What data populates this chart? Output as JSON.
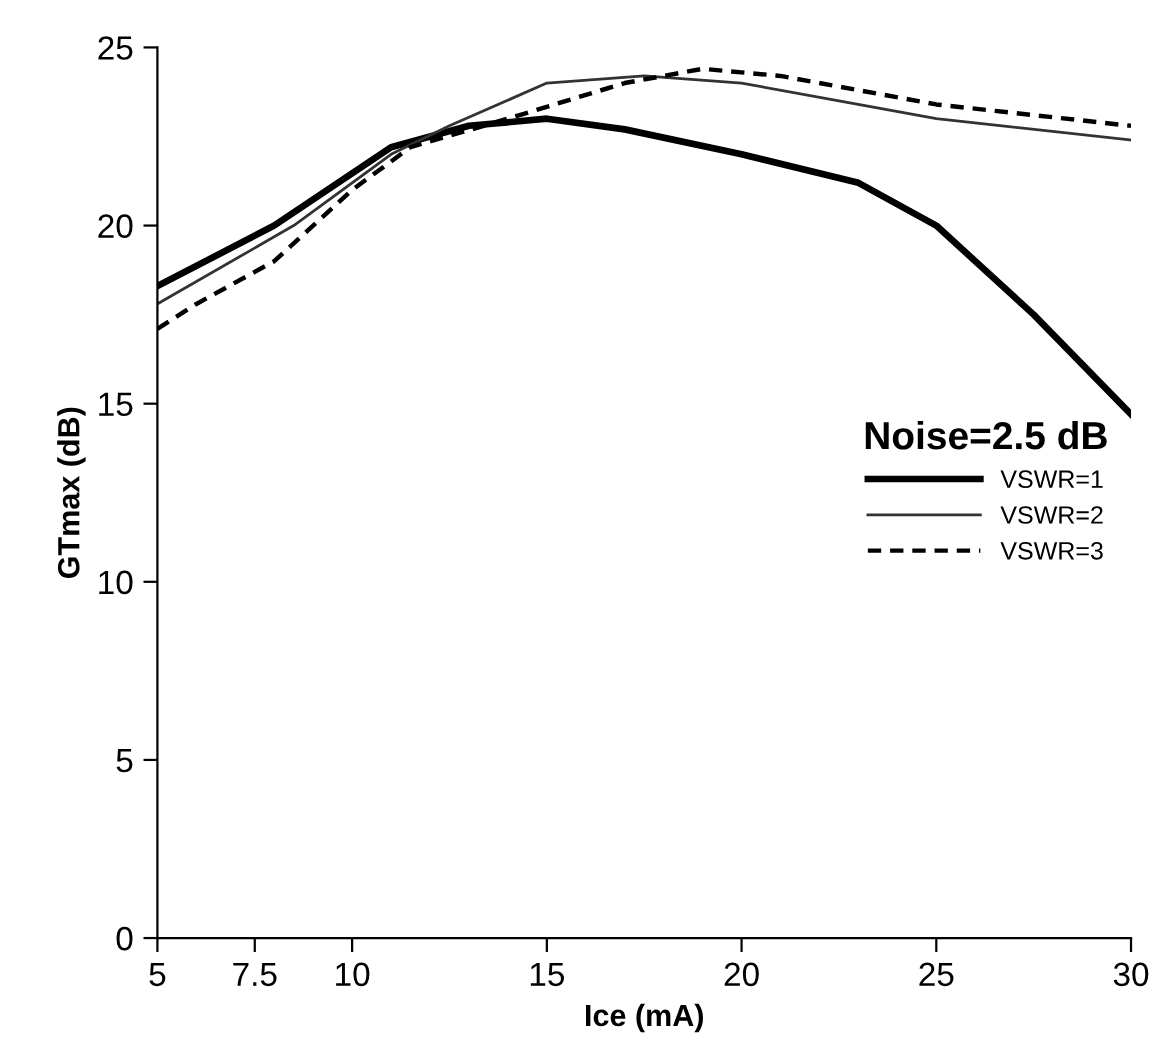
{
  "chart_data": {
    "type": "line",
    "xlabel": "Ice (mA)",
    "ylabel": "GTmax (dB)",
    "legend_title": "Noise=2.5 dB",
    "legend": "center right",
    "grid": false,
    "marker": "none",
    "xlim": [
      5,
      30
    ],
    "xticks": [
      5,
      7.5,
      10,
      15,
      20,
      25,
      30
    ],
    "ylim": [
      0,
      25
    ],
    "yticks": [
      0,
      5,
      10,
      15,
      20,
      25
    ],
    "series": [
      {
        "name": "VSWR=1",
        "color": "#000000",
        "line_style": "solid",
        "x": [
          5,
          8,
          11,
          13,
          15,
          17,
          20,
          23,
          25,
          27.5,
          30
        ],
        "values": [
          18.3,
          20,
          22.2,
          22.8,
          23,
          22.7,
          22,
          21.2,
          20,
          17.5,
          14.7
        ]
      },
      {
        "name": "VSWR=2",
        "color": "#333333",
        "line_style": "solid",
        "x": [
          5,
          8.5,
          11,
          12.5,
          15,
          17.5,
          20,
          22.5,
          25,
          30
        ],
        "values": [
          17.8,
          20,
          22,
          22.8,
          24,
          24.2,
          24,
          23.5,
          23,
          22.4
        ]
      },
      {
        "name": "VSWR=3",
        "color": "#000000",
        "line_style": "dashed",
        "x": [
          5,
          6,
          7.5,
          8,
          10,
          11.5,
          14,
          17,
          19,
          21,
          23,
          25,
          30
        ],
        "values": [
          17.1,
          17.8,
          18.7,
          19,
          21,
          22.2,
          23,
          24,
          24.4,
          24.2,
          23.8,
          23.4,
          22.8
        ]
      }
    ]
  }
}
